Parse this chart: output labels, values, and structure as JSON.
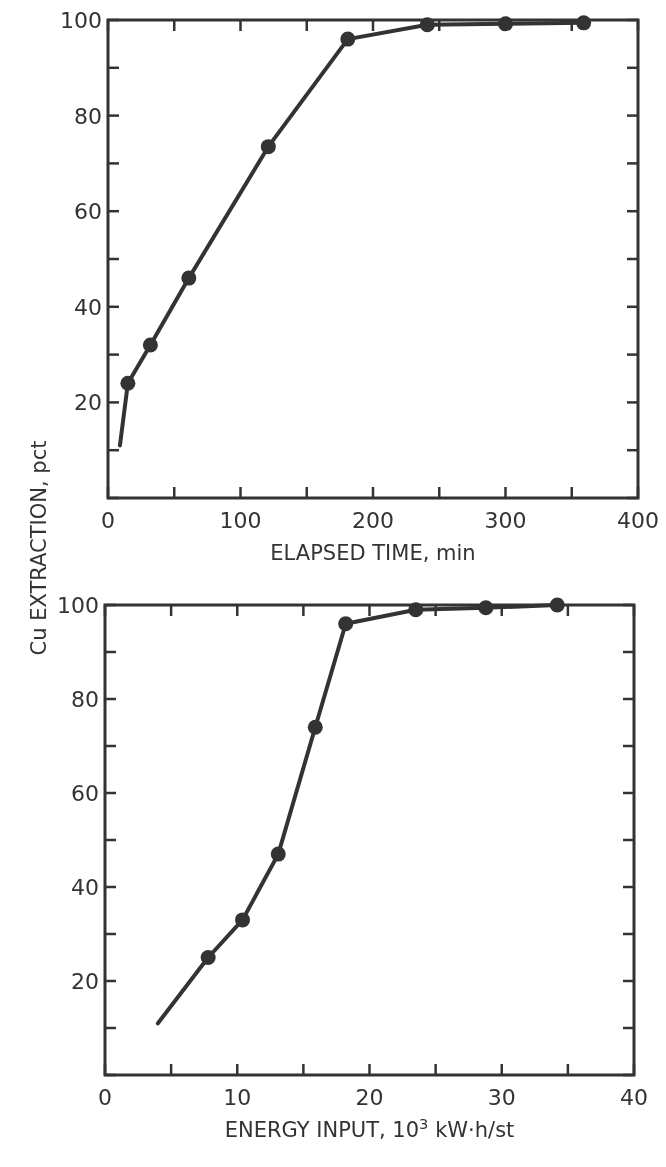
{
  "chart_data": [
    {
      "type": "line",
      "ylabel": "Cu EXTRACTION, pct",
      "xlabel": "ELAPSED TIME, min",
      "xlim": [
        0,
        400
      ],
      "ylim": [
        0,
        100
      ],
      "xticks": [
        0,
        {
          "value": 50,
          "label": null
        },
        100,
        {
          "value": 150,
          "label": null
        },
        200,
        {
          "value": 250,
          "label": null
        },
        300,
        {
          "value": 350,
          "label": null
        },
        400
      ],
      "yticks": [
        {
          "value": 0,
          "label": null
        },
        {
          "value": 10,
          "label": null
        },
        20,
        {
          "value": 30,
          "label": null
        },
        40,
        {
          "value": 50,
          "label": null
        },
        60,
        {
          "value": 70,
          "label": null
        },
        80,
        {
          "value": 90,
          "label": null
        },
        100
      ],
      "series": [
        {
          "color": "#333333",
          "marker": "none",
          "x": [
            9,
            15,
            32,
            61,
            121,
            181,
            241,
            300,
            359
          ],
          "values": [
            11,
            24,
            32,
            46,
            73.5,
            96,
            99,
            99.2,
            99.4
          ]
        },
        {
          "type": "scatter",
          "color": "#333333",
          "marker": "circle",
          "x": [
            15,
            32,
            61,
            121,
            181,
            241,
            300,
            359
          ],
          "values": [
            24,
            32,
            46,
            73.5,
            96,
            99,
            99.2,
            99.4
          ]
        }
      ]
    },
    {
      "type": "line",
      "xlabel": "ENERGY INPUT, 10$^{3}$ kW·h/st",
      "xlim": [
        0,
        40
      ],
      "ylim": [
        0,
        100
      ],
      "xticks": [
        0,
        {
          "value": 5,
          "label": null
        },
        10,
        {
          "value": 15,
          "label": null
        },
        20,
        {
          "value": 25,
          "label": null
        },
        30,
        {
          "value": 35,
          "label": null
        },
        40
      ],
      "yticks": [
        {
          "value": 0,
          "label": null
        },
        {
          "value": 10,
          "label": null
        },
        20,
        {
          "value": 30,
          "label": null
        },
        40,
        {
          "value": 50,
          "label": null
        },
        60,
        {
          "value": 70,
          "label": null
        },
        80,
        {
          "value": 90,
          "label": null
        },
        100
      ],
      "series": [
        {
          "color": "#333333",
          "marker": "none",
          "x": [
            4,
            7.8,
            10.4,
            13.1,
            15.9,
            18.2,
            23.5,
            28.8,
            34.2
          ],
          "values": [
            11,
            25,
            33,
            47,
            74,
            96,
            99,
            99.4,
            100
          ]
        },
        {
          "type": "scatter",
          "color": "#333333",
          "marker": "circle",
          "x": [
            7.8,
            10.4,
            13.1,
            15.9,
            18.2,
            23.5,
            28.8,
            34.2
          ],
          "values": [
            25,
            33,
            47,
            74,
            96,
            99,
            99.4,
            100
          ]
        }
      ]
    }
  ]
}
